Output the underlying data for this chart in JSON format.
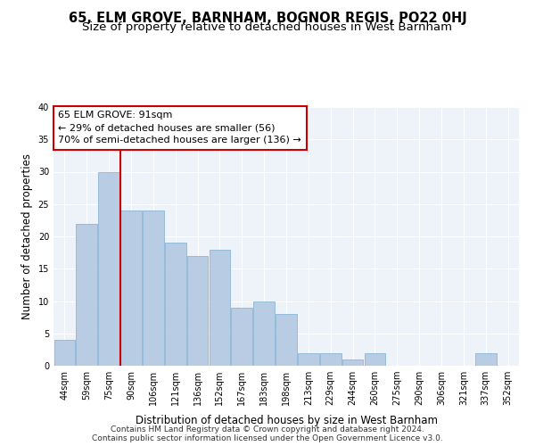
{
  "title_line1": "65, ELM GROVE, BARNHAM, BOGNOR REGIS, PO22 0HJ",
  "title_line2": "Size of property relative to detached houses in West Barnham",
  "xlabel": "Distribution of detached houses by size in West Barnham",
  "ylabel": "Number of detached properties",
  "categories": [
    "44sqm",
    "59sqm",
    "75sqm",
    "90sqm",
    "106sqm",
    "121sqm",
    "136sqm",
    "152sqm",
    "167sqm",
    "183sqm",
    "198sqm",
    "213sqm",
    "229sqm",
    "244sqm",
    "260sqm",
    "275sqm",
    "290sqm",
    "306sqm",
    "321sqm",
    "337sqm",
    "352sqm"
  ],
  "values": [
    4,
    22,
    30,
    24,
    24,
    19,
    17,
    18,
    9,
    10,
    8,
    2,
    2,
    1,
    2,
    0,
    0,
    0,
    0,
    2,
    0
  ],
  "bar_color": "#b8cce4",
  "bar_edge_color": "#7bafd4",
  "red_line_x": 2.5,
  "annotation_line1": "65 ELM GROVE: 91sqm",
  "annotation_line2": "← 29% of detached houses are smaller (56)",
  "annotation_line3": "70% of semi-detached houses are larger (136) →",
  "red_line_color": "#cc0000",
  "footer_line1": "Contains HM Land Registry data © Crown copyright and database right 2024.",
  "footer_line2": "Contains public sector information licensed under the Open Government Licence v3.0.",
  "ylim": [
    0,
    40
  ],
  "yticks": [
    0,
    5,
    10,
    15,
    20,
    25,
    30,
    35,
    40
  ],
  "background_color": "#eef2f9",
  "grid_color": "#ffffff",
  "title_fontsize": 10.5,
  "subtitle_fontsize": 9.5,
  "axis_label_fontsize": 8.5,
  "tick_fontsize": 7,
  "annotation_fontsize": 8,
  "footer_fontsize": 6.5
}
